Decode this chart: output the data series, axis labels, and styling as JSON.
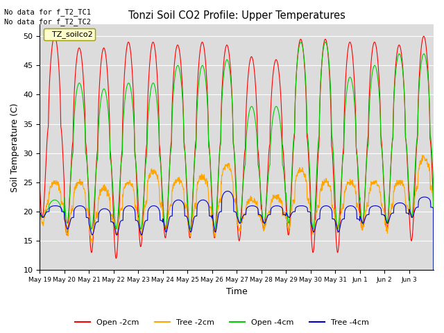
{
  "title": "Tonzi Soil CO2 Profile: Upper Temperatures",
  "ylabel": "Soil Temperature (C)",
  "xlabel": "Time",
  "ylim": [
    10,
    52
  ],
  "yticks": [
    10,
    15,
    20,
    25,
    30,
    35,
    40,
    45,
    50
  ],
  "bg_color": "#dcdcdc",
  "annotations": [
    "No data for f_T2_TC1",
    "No data for f_T2_TC2"
  ],
  "legend_label": "TZ_soilco2",
  "series_labels": [
    "Open -2cm",
    "Tree -2cm",
    "Open -4cm",
    "Tree -4cm"
  ],
  "series_colors": [
    "#ff0000",
    "#ffa500",
    "#00cc00",
    "#0000cc"
  ],
  "n_days": 16,
  "xtick_labels": [
    "May 19",
    "May 20",
    "May 21",
    "May 22",
    "May 23",
    "May 24",
    "May 25",
    "May 26",
    "May 27",
    "May 28",
    "May 29",
    "May 30",
    "May 31",
    "Jun 1",
    "Jun 2",
    "Jun 3"
  ],
  "peaks_open2": [
    50,
    48,
    48,
    49,
    49,
    48.5,
    49,
    48.5,
    46.5,
    46,
    49.5,
    49.5,
    49,
    49,
    48.5,
    50
  ],
  "troughs_open2": [
    19,
    16,
    13,
    12,
    14,
    15.5,
    15.5,
    15.5,
    15,
    17,
    16,
    13,
    13,
    17,
    17,
    15
  ],
  "peaks_tree2": [
    25,
    25,
    24,
    25,
    27,
    25.5,
    26,
    28,
    22,
    22.5,
    27,
    25,
    25,
    25,
    25,
    29
  ],
  "troughs_tree2": [
    18,
    16,
    15,
    16,
    16,
    17,
    16,
    16,
    17,
    17,
    17,
    16.5,
    17,
    17,
    17,
    19
  ],
  "peaks_open4": [
    22,
    42,
    41,
    42,
    42,
    45,
    45,
    46,
    38,
    38,
    49,
    49,
    43,
    45,
    47,
    47
  ],
  "troughs_open4": [
    19,
    18,
    17,
    17,
    17,
    17,
    17,
    17,
    18,
    18,
    18,
    17,
    17,
    18,
    18,
    19
  ],
  "peaks_tree4": [
    21,
    21,
    20.5,
    21,
    21,
    22,
    22,
    23.5,
    21,
    21,
    21,
    21,
    21,
    21,
    21.5,
    22.5
  ],
  "troughs_tree4": [
    19,
    17,
    16,
    16,
    16,
    16.5,
    16.5,
    16.5,
    18,
    18,
    19,
    16.5,
    16.5,
    18,
    18,
    19
  ]
}
